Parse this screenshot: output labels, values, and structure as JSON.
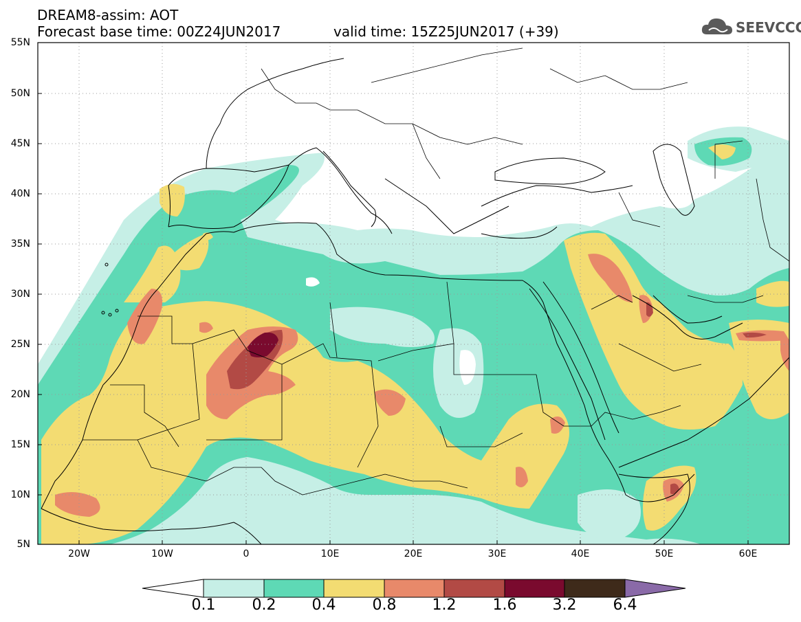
{
  "header": {
    "line1": "DREAM8-assim: AOT",
    "line2": "Forecast base time: 00Z24JUN2017",
    "line3": "valid time: 15Z25JUN2017 (+39)"
  },
  "logo": {
    "text": "SEEVCCC",
    "icon": "cloud-icon"
  },
  "lat_labels": [
    "55N",
    "50N",
    "45N",
    "40N",
    "35N",
    "30N",
    "25N",
    "20N",
    "15N",
    "10N",
    "5N"
  ],
  "lon_labels": [
    "20W",
    "10W",
    "0",
    "10E",
    "20E",
    "30E",
    "40E",
    "50E",
    "60E"
  ],
  "colorbar": {
    "labels": [
      "0.1",
      "0.2",
      "0.4",
      "0.8",
      "1.2",
      "1.6",
      "3.2",
      "6.4"
    ],
    "colors": [
      "#c6efe6",
      "#5ed9b5",
      "#f3dc72",
      "#e8896a",
      "#b24a45",
      "#7a0a2e",
      "#3e2a1a"
    ],
    "over_color": "#8a6aa8",
    "under_color": "#ffffff"
  },
  "map": {
    "lat_range": [
      5,
      55
    ],
    "lon_range": [
      -25,
      65
    ],
    "colors": {
      "c1": "#c6efe6",
      "c2": "#5ed9b5",
      "c3": "#f3dc72",
      "c4": "#e8896a",
      "c5": "#b24a45",
      "c6": "#7a0a2e"
    }
  }
}
